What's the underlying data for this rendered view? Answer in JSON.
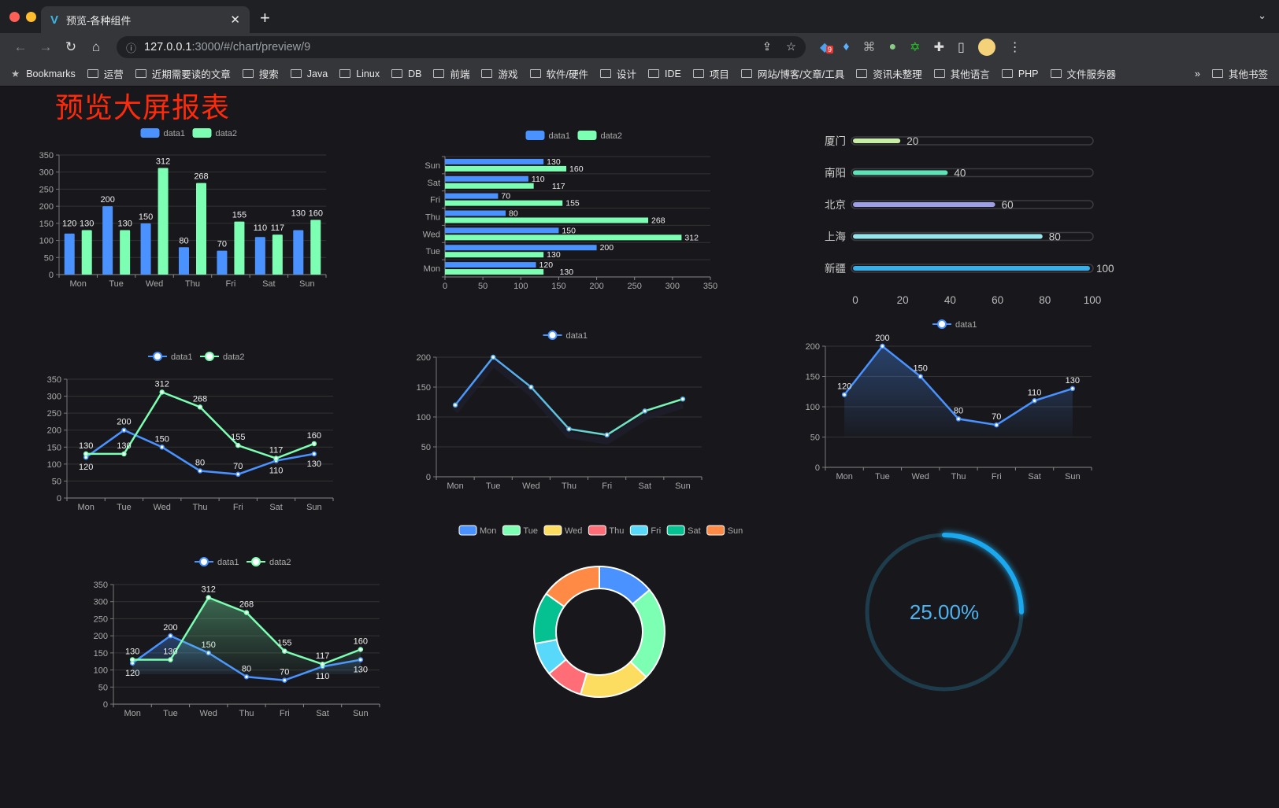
{
  "browser": {
    "tab_title": "预览-各种组件",
    "url_host": "127.0.0.1",
    "url_rest": ":3000/#/chart/preview/9",
    "extension_badge": "9",
    "bookmarks": [
      "Bookmarks",
      "运营",
      "近期需要读的文章",
      "搜索",
      "Java",
      "Linux",
      "DB",
      "前端",
      "游戏",
      "软件/硬件",
      "设计",
      "IDE",
      "项目",
      "网站/博客/文章/工具",
      "资讯未整理",
      "其他语言",
      "PHP",
      "文件服务器"
    ],
    "more": "»",
    "other_bookmarks": "其他书签"
  },
  "page_title": "预览大屏报表",
  "colors": {
    "data1": "#4992ff",
    "data2": "#7cffb2",
    "background": "#18181c",
    "title": "#ff2a0a",
    "gauge": "#1ba8ee"
  },
  "chart_data": [
    {
      "type": "bar",
      "categories": [
        "Mon",
        "Tue",
        "Wed",
        "Thu",
        "Fri",
        "Sat",
        "Sun"
      ],
      "series": [
        {
          "name": "data1",
          "values": [
            120,
            200,
            150,
            80,
            70,
            110,
            130
          ]
        },
        {
          "name": "data2",
          "values": [
            130,
            130,
            312,
            268,
            155,
            117,
            160
          ]
        }
      ],
      "ylim": [
        0,
        350
      ],
      "yticks": [
        "0",
        "50",
        "100",
        "150",
        "200",
        "250",
        "300",
        "350"
      ],
      "legend": "top-center",
      "grid": true
    },
    {
      "type": "bar",
      "orientation": "horizontal",
      "categories": [
        "Mon",
        "Tue",
        "Wed",
        "Thu",
        "Fri",
        "Sat",
        "Sun"
      ],
      "series": [
        {
          "name": "data1",
          "values": [
            120,
            200,
            150,
            80,
            70,
            110,
            130
          ]
        },
        {
          "name": "data2",
          "values": [
            130,
            130,
            312,
            268,
            155,
            117,
            160
          ]
        }
      ],
      "xlim": [
        0,
        350
      ],
      "xticks": [
        "0",
        "50",
        "100",
        "150",
        "200",
        "250",
        "300",
        "350"
      ],
      "legend": "top-center",
      "grid": true
    },
    {
      "type": "bar",
      "variant": "progress",
      "categories": [
        "厦门",
        "南阳",
        "北京",
        "上海",
        "新疆"
      ],
      "values": [
        20,
        40,
        60,
        80,
        100
      ],
      "colors": [
        "#c6eca8",
        "#5fe3b6",
        "#9d9ee8",
        "#97e5ec",
        "#3aaee6"
      ],
      "xlim": [
        0,
        100
      ],
      "xticks": [
        "0",
        "20",
        "40",
        "60",
        "80",
        "100"
      ]
    },
    {
      "type": "line",
      "categories": [
        "Mon",
        "Tue",
        "Wed",
        "Thu",
        "Fri",
        "Sat",
        "Sun"
      ],
      "series": [
        {
          "name": "data1",
          "values": [
            120,
            200,
            150,
            80,
            70,
            110,
            130
          ]
        },
        {
          "name": "data2",
          "values": [
            130,
            130,
            312,
            268,
            155,
            117,
            160
          ]
        }
      ],
      "ylim": [
        0,
        350
      ],
      "yticks": [
        "0",
        "50",
        "100",
        "150",
        "200",
        "250",
        "300",
        "350"
      ],
      "legend": "top-center",
      "grid": true
    },
    {
      "type": "line",
      "categories": [
        "Mon",
        "Tue",
        "Wed",
        "Thu",
        "Fri",
        "Sat",
        "Sun"
      ],
      "series": [
        {
          "name": "data1",
          "values": [
            120,
            200,
            150,
            80,
            70,
            110,
            130
          ]
        }
      ],
      "gradient": [
        "#4992ff",
        "#7cffb2"
      ],
      "ylim": [
        0,
        200
      ],
      "yticks": [
        "0",
        "50",
        "100",
        "150",
        "200"
      ],
      "legend": "top-center",
      "grid": true,
      "show_labels": false
    },
    {
      "type": "area",
      "categories": [
        "Mon",
        "Tue",
        "Wed",
        "Thu",
        "Fri",
        "Sat",
        "Sun"
      ],
      "series": [
        {
          "name": "data1",
          "values": [
            120,
            200,
            150,
            80,
            70,
            110,
            130
          ]
        }
      ],
      "ylim": [
        0,
        200
      ],
      "yticks": [
        "0",
        "50",
        "100",
        "150",
        "200"
      ],
      "legend": "top-center",
      "grid": true
    },
    {
      "type": "area",
      "categories": [
        "Mon",
        "Tue",
        "Wed",
        "Thu",
        "Fri",
        "Sat",
        "Sun"
      ],
      "series": [
        {
          "name": "data1",
          "values": [
            120,
            200,
            150,
            80,
            70,
            110,
            130
          ]
        },
        {
          "name": "data2",
          "values": [
            130,
            130,
            312,
            268,
            155,
            117,
            160
          ]
        }
      ],
      "ylim": [
        0,
        350
      ],
      "yticks": [
        "0",
        "50",
        "100",
        "150",
        "200",
        "250",
        "300",
        "350"
      ],
      "legend": "top-center",
      "grid": true
    },
    {
      "type": "pie",
      "variant": "donut",
      "categories": [
        "Mon",
        "Tue",
        "Wed",
        "Thu",
        "Fri",
        "Sat",
        "Sun"
      ],
      "values": [
        120,
        200,
        150,
        80,
        70,
        110,
        130
      ],
      "colors": [
        "#4992ff",
        "#7cffb2",
        "#fddd60",
        "#ff6e76",
        "#58d9f9",
        "#05c091",
        "#ff8a45"
      ],
      "legend": "top-center"
    },
    {
      "type": "gauge",
      "value": 25,
      "label": "25.00%",
      "max": 100
    }
  ]
}
